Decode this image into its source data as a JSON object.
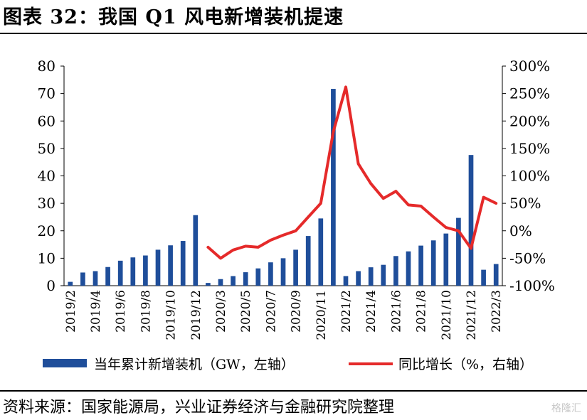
{
  "figure_title": "图表 32：我国 Q1 风电新增装机提速",
  "source_note": "资料来源：国家能源局，兴业证券经济与金融研究院整理",
  "watermark": "格隆汇",
  "colors": {
    "bar": "#1F4E9A",
    "line": "#E52A2A",
    "axis": "#000000"
  },
  "chart_data": {
    "type": "bar",
    "x": [
      "2019/2",
      "2019/3",
      "2019/4",
      "2019/5",
      "2019/6",
      "2019/7",
      "2019/8",
      "2019/9",
      "2019/10",
      "2019/11",
      "2019/12",
      "2020/2",
      "2020/3",
      "2020/4",
      "2020/5",
      "2020/6",
      "2020/7",
      "2020/8",
      "2020/9",
      "2020/10",
      "2020/11",
      "2020/12",
      "2021/2",
      "2021/3",
      "2021/4",
      "2021/5",
      "2021/6",
      "2021/7",
      "2021/8",
      "2021/9",
      "2021/10",
      "2021/11",
      "2021/12",
      "2022/2",
      "2022/3"
    ],
    "x_tick_labels": [
      "2019/2",
      "2019/4",
      "2019/6",
      "2019/8",
      "2019/10",
      "2019/12",
      "2020/3",
      "2020/5",
      "2020/7",
      "2020/9",
      "2020/11",
      "2021/2",
      "2021/4",
      "2021/6",
      "2021/8",
      "2021/10",
      "2021/12",
      "2022/3"
    ],
    "y_left": {
      "ylim": [
        0,
        80
      ],
      "ticks": [
        "0",
        "10",
        "20",
        "30",
        "40",
        "50",
        "60",
        "70",
        "80"
      ]
    },
    "y_right": {
      "ylim": [
        -100,
        300
      ],
      "ticks": [
        "-100%",
        "-50%",
        "0%",
        "50%",
        "100%",
        "150%",
        "200%",
        "250%",
        "300%"
      ]
    },
    "series": [
      {
        "name": "当年累计新增装机（GW，左轴）",
        "type": "bar",
        "axis": "left",
        "values": [
          1.4,
          4.8,
          5.3,
          6.8,
          9.1,
          10.3,
          11.0,
          13.1,
          14.7,
          16.3,
          25.7,
          1.0,
          2.4,
          3.5,
          4.9,
          6.3,
          8.5,
          10.0,
          13.1,
          18.1,
          24.5,
          71.7,
          3.5,
          5.3,
          6.7,
          7.6,
          10.8,
          12.5,
          14.6,
          16.5,
          19.0,
          24.7,
          47.6,
          5.8,
          7.9
        ]
      },
      {
        "name": "同比增长（%，右轴）",
        "type": "line",
        "axis": "right",
        "values": [
          null,
          null,
          null,
          null,
          null,
          null,
          null,
          null,
          null,
          null,
          null,
          -30,
          -50,
          -35,
          -28,
          -30,
          -17,
          -8,
          0,
          25,
          50,
          180,
          262,
          122,
          86,
          59,
          72,
          47,
          45,
          25,
          6,
          0,
          -32,
          61,
          50
        ]
      }
    ]
  }
}
